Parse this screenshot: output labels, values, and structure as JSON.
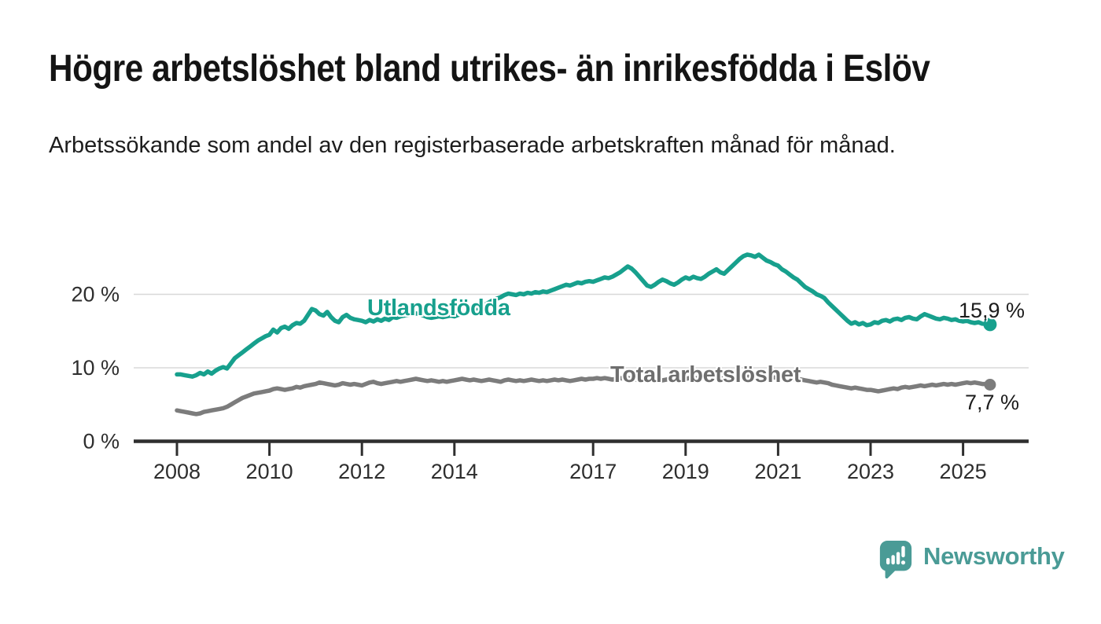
{
  "title": "Högre arbetslöshet bland utrikes- än inrikesfödda i Eslöv",
  "subtitle": "Arbetssökande som andel av den registerbaserade arbetskraften månad för månad.",
  "branding": {
    "logo_text": "Newsworthy",
    "logo_icon": "speech-bubble-bar-chart-icon",
    "logo_color": "#4a9b96"
  },
  "chart_data": {
    "type": "line",
    "title": "Högre arbetslöshet bland utrikes- än inrikesfödda i Eslöv",
    "xlabel": "",
    "ylabel": "",
    "frequency": "monthly",
    "x_start": "2008-01",
    "x_end": "2025-08",
    "xlim_years": [
      2007.1,
      2026.4
    ],
    "ylim": [
      0,
      27
    ],
    "grid": "horizontal",
    "legend_position": "inline-labels",
    "x_tick_labels": [
      "2008",
      "2010",
      "2012",
      "2014",
      "2017",
      "2019",
      "2021",
      "2023",
      "2025"
    ],
    "y_ticks": [
      {
        "value": 0,
        "label": "0 %"
      },
      {
        "value": 10,
        "label": "10 %"
      },
      {
        "value": 20,
        "label": "20 %"
      }
    ],
    "series": [
      {
        "name": "Utlandsfödda",
        "color": "#17a08d",
        "end_label": "15,9 %",
        "end_value": 15.9,
        "values": [
          9.1,
          9.1,
          9.0,
          8.9,
          8.8,
          9.0,
          9.3,
          9.1,
          9.5,
          9.2,
          9.6,
          9.9,
          10.1,
          9.9,
          10.6,
          11.3,
          11.7,
          12.1,
          12.5,
          12.9,
          13.3,
          13.7,
          14.0,
          14.3,
          14.5,
          15.2,
          14.8,
          15.4,
          15.6,
          15.3,
          15.8,
          16.1,
          16.0,
          16.4,
          17.2,
          18.0,
          17.8,
          17.3,
          17.1,
          17.6,
          16.9,
          16.4,
          16.2,
          16.9,
          17.2,
          16.8,
          16.6,
          16.5,
          16.4,
          16.2,
          16.5,
          16.3,
          16.6,
          16.4,
          16.7,
          16.5,
          16.9,
          16.8,
          17.0,
          17.1,
          17.2,
          17.3,
          17.4,
          17.3,
          17.1,
          16.9,
          16.8,
          16.9,
          17.0,
          16.9,
          17.0,
          17.1,
          17.0,
          17.2,
          17.3,
          17.4,
          17.6,
          17.8,
          18.0,
          18.3,
          18.6,
          18.9,
          19.2,
          19.4,
          19.6,
          19.9,
          20.1,
          20.0,
          19.9,
          20.1,
          20.0,
          20.2,
          20.1,
          20.3,
          20.2,
          20.4,
          20.3,
          20.5,
          20.7,
          20.9,
          21.1,
          21.3,
          21.2,
          21.4,
          21.6,
          21.5,
          21.7,
          21.8,
          21.7,
          21.9,
          22.1,
          22.3,
          22.2,
          22.4,
          22.7,
          23.0,
          23.4,
          23.8,
          23.5,
          23.0,
          22.4,
          21.8,
          21.2,
          21.0,
          21.3,
          21.7,
          22.0,
          21.8,
          21.5,
          21.3,
          21.6,
          22.0,
          22.3,
          22.1,
          22.4,
          22.2,
          22.1,
          22.4,
          22.8,
          23.1,
          23.4,
          23.0,
          22.8,
          23.3,
          23.8,
          24.3,
          24.8,
          25.2,
          25.4,
          25.3,
          25.1,
          25.4,
          25.0,
          24.6,
          24.4,
          24.1,
          23.9,
          23.4,
          23.1,
          22.7,
          22.3,
          22.0,
          21.5,
          21.0,
          20.7,
          20.4,
          20.0,
          19.8,
          19.5,
          18.9,
          18.4,
          17.9,
          17.4,
          16.9,
          16.4,
          16.0,
          16.2,
          15.9,
          16.1,
          15.8,
          15.9,
          16.2,
          16.1,
          16.4,
          16.5,
          16.3,
          16.6,
          16.7,
          16.5,
          16.8,
          16.9,
          16.7,
          16.6,
          17.0,
          17.3,
          17.1,
          16.9,
          16.7,
          16.6,
          16.8,
          16.7,
          16.5,
          16.6,
          16.4,
          16.3,
          16.4,
          16.2,
          16.1,
          16.2,
          16.0,
          16.0,
          15.9
        ]
      },
      {
        "name": "Total arbetslöshet",
        "color": "#7c7c7c",
        "end_label": "7,7 %",
        "end_value": 7.7,
        "values": [
          4.2,
          4.1,
          4.0,
          3.9,
          3.8,
          3.7,
          3.8,
          4.0,
          4.1,
          4.2,
          4.3,
          4.4,
          4.5,
          4.7,
          5.0,
          5.3,
          5.6,
          5.9,
          6.1,
          6.3,
          6.5,
          6.6,
          6.7,
          6.8,
          6.9,
          7.1,
          7.2,
          7.1,
          7.0,
          7.1,
          7.2,
          7.4,
          7.3,
          7.5,
          7.6,
          7.7,
          7.8,
          8.0,
          7.9,
          7.8,
          7.7,
          7.6,
          7.7,
          7.9,
          7.8,
          7.7,
          7.8,
          7.7,
          7.6,
          7.8,
          8.0,
          8.1,
          7.9,
          7.8,
          7.9,
          8.0,
          8.1,
          8.2,
          8.1,
          8.2,
          8.3,
          8.4,
          8.5,
          8.4,
          8.3,
          8.2,
          8.3,
          8.2,
          8.1,
          8.2,
          8.1,
          8.2,
          8.3,
          8.4,
          8.5,
          8.4,
          8.3,
          8.4,
          8.3,
          8.2,
          8.3,
          8.4,
          8.3,
          8.2,
          8.1,
          8.3,
          8.4,
          8.3,
          8.2,
          8.3,
          8.2,
          8.3,
          8.4,
          8.3,
          8.2,
          8.3,
          8.2,
          8.3,
          8.4,
          8.3,
          8.4,
          8.3,
          8.2,
          8.3,
          8.4,
          8.5,
          8.4,
          8.5,
          8.5,
          8.6,
          8.5,
          8.6,
          8.5,
          8.4,
          8.5,
          8.6,
          8.5,
          8.6,
          8.5,
          8.4,
          8.3,
          8.5,
          8.6,
          8.4,
          8.3,
          8.2,
          8.3,
          8.4,
          8.5,
          8.4,
          8.5,
          8.4,
          8.5,
          8.6,
          8.5,
          8.6,
          8.5,
          8.6,
          8.5,
          8.4,
          8.5,
          8.6,
          8.5,
          8.6,
          8.6,
          8.7,
          8.8,
          8.7,
          8.8,
          8.7,
          8.8,
          8.7,
          8.6,
          8.7,
          8.6,
          8.7,
          8.6,
          8.7,
          8.6,
          8.5,
          8.4,
          8.5,
          8.4,
          8.3,
          8.2,
          8.1,
          8.0,
          8.1,
          8.0,
          7.9,
          7.7,
          7.6,
          7.5,
          7.4,
          7.3,
          7.2,
          7.3,
          7.2,
          7.1,
          7.0,
          7.0,
          6.9,
          6.8,
          6.9,
          7.0,
          7.1,
          7.2,
          7.1,
          7.3,
          7.4,
          7.3,
          7.4,
          7.5,
          7.6,
          7.5,
          7.6,
          7.7,
          7.6,
          7.7,
          7.8,
          7.7,
          7.8,
          7.7,
          7.8,
          7.9,
          8.0,
          7.9,
          8.0,
          7.9,
          7.8,
          7.8,
          7.7
        ]
      }
    ]
  }
}
